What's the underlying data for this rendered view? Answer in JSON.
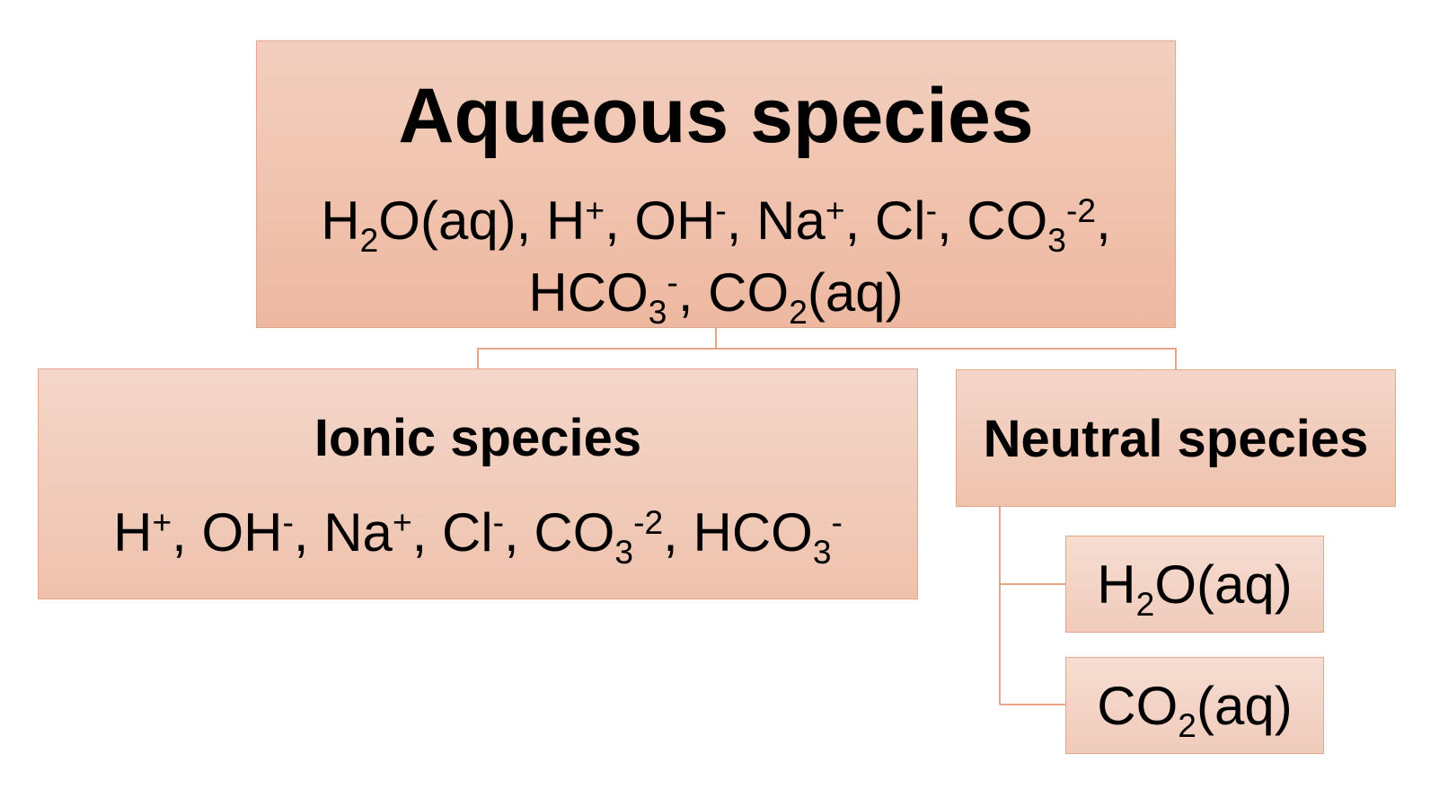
{
  "root": {
    "title": "Aqueous species",
    "line1": [
      {
        "t": "H"
      },
      {
        "t": "2",
        "sub": true
      },
      {
        "t": "O(aq), H"
      },
      {
        "t": "+",
        "sup": true
      },
      {
        "t": ", OH"
      },
      {
        "t": "-",
        "sup": true
      },
      {
        "t": ", Na"
      },
      {
        "t": "+",
        "sup": true
      },
      {
        "t": ", Cl"
      },
      {
        "t": "-",
        "sup": true
      },
      {
        "t": ", CO"
      },
      {
        "t": "3",
        "sub": true
      },
      {
        "t": "-2",
        "sup": true
      },
      {
        "t": ","
      }
    ],
    "line2": [
      {
        "t": "HCO"
      },
      {
        "t": "3",
        "sub": true
      },
      {
        "t": "-",
        "sup": true
      },
      {
        "t": ", CO"
      },
      {
        "t": "2",
        "sub": true
      },
      {
        "t": "(aq)"
      }
    ]
  },
  "ionic": {
    "title": "Ionic species",
    "formula": [
      {
        "t": "H"
      },
      {
        "t": "+",
        "sup": true
      },
      {
        "t": ", OH"
      },
      {
        "t": "-",
        "sup": true
      },
      {
        "t": ", Na"
      },
      {
        "t": "+",
        "sup": true
      },
      {
        "t": ", Cl"
      },
      {
        "t": "-",
        "sup": true
      },
      {
        "t": ", CO"
      },
      {
        "t": "3",
        "sub": true
      },
      {
        "t": "-2",
        "sup": true
      },
      {
        "t": ", HCO"
      },
      {
        "t": "3",
        "sub": true
      },
      {
        "t": "-",
        "sup": true
      }
    ]
  },
  "neutral": {
    "title": "Neutral species",
    "children": [
      [
        {
          "t": "H"
        },
        {
          "t": "2",
          "sub": true
        },
        {
          "t": "O(aq)"
        }
      ],
      [
        {
          "t": "CO"
        },
        {
          "t": "2",
          "sub": true
        },
        {
          "t": "(aq)"
        }
      ]
    ]
  },
  "colors": {
    "connector": "#e8a585",
    "border": "#e2a88c"
  }
}
